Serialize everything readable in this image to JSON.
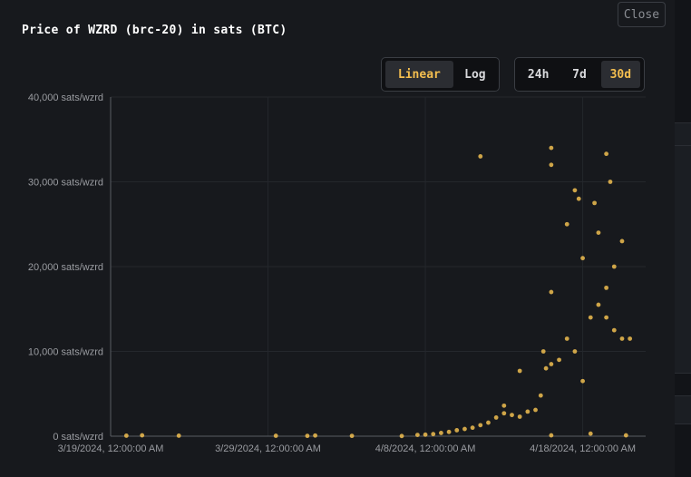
{
  "modal": {
    "title": "Price of WZRD (brc-20) in sats (BTC)",
    "close_label": "Close"
  },
  "scale_toggle": {
    "options": [
      "Linear",
      "Log"
    ],
    "selected": "Linear"
  },
  "range_toggle": {
    "options": [
      "24h",
      "7d",
      "30d"
    ],
    "selected": "30d"
  },
  "colors": {
    "background": "#17191d",
    "accent": "#f4be4f",
    "point": "#f0be50",
    "axis_text": "#9a9ca1"
  },
  "chart_data": {
    "type": "scatter",
    "title": "Price of WZRD (brc-20) in sats (BTC)",
    "xlabel": "",
    "ylabel": "",
    "y_unit": "sats/wzrd",
    "ylim": [
      0,
      40000
    ],
    "y_ticks": [
      0,
      10000,
      20000,
      30000,
      40000
    ],
    "y_tick_labels": [
      "0 sats/wzrd",
      "10,000 sats/wzrd",
      "20,000 sats/wzrd",
      "30,000 sats/wzrd",
      "40,000 sats/wzrd"
    ],
    "xlim": [
      "2024-03-19",
      "2024-04-22"
    ],
    "x_ticks": [
      "2024-03-19",
      "2024-03-29",
      "2024-04-08",
      "2024-04-18"
    ],
    "x_tick_labels": [
      "3/19/2024, 12:00:00 AM",
      "3/29/2024, 12:00:00 AM",
      "4/8/2024, 12:00:00 AM",
      "4/18/2024, 12:00:00 AM"
    ],
    "grid": true,
    "legend": "none",
    "series": [
      {
        "points": [
          [
            "2024-03-20 00:00",
            60
          ],
          [
            "2024-03-21 00:00",
            100
          ],
          [
            "2024-03-23 08:00",
            60
          ],
          [
            "2024-03-29 12:00",
            50
          ],
          [
            "2024-03-31 12:00",
            40
          ],
          [
            "2024-04-01 00:00",
            80
          ],
          [
            "2024-04-03 08:00",
            40
          ],
          [
            "2024-04-06 12:00",
            20
          ],
          [
            "2024-04-07 12:00",
            150
          ],
          [
            "2024-04-08 00:00",
            180
          ],
          [
            "2024-04-08 12:00",
            250
          ],
          [
            "2024-04-09 00:00",
            380
          ],
          [
            "2024-04-09 12:00",
            500
          ],
          [
            "2024-04-10 00:00",
            700
          ],
          [
            "2024-04-10 12:00",
            850
          ],
          [
            "2024-04-11 00:00",
            1000
          ],
          [
            "2024-04-11 12:00",
            1300
          ],
          [
            "2024-04-12 00:00",
            1600
          ],
          [
            "2024-04-12 12:00",
            2200
          ],
          [
            "2024-04-13 00:00",
            2700
          ],
          [
            "2024-04-13 12:00",
            2500
          ],
          [
            "2024-04-14 00:00",
            2300
          ],
          [
            "2024-04-14 12:00",
            2900
          ],
          [
            "2024-04-15 00:00",
            3100
          ],
          [
            "2024-04-15 08:00",
            4800
          ],
          [
            "2024-04-15 16:00",
            8000
          ],
          [
            "2024-04-16 00:00",
            8500
          ],
          [
            "2024-04-16 12:00",
            9000
          ],
          [
            "2024-04-17 00:00",
            11500
          ],
          [
            "2024-04-17 12:00",
            10000
          ],
          [
            "2024-04-18 00:00",
            6500
          ],
          [
            "2024-04-18 12:00",
            14000
          ],
          [
            "2024-04-19 00:00",
            15500
          ],
          [
            "2024-04-19 12:00",
            14000
          ],
          [
            "2024-04-20 00:00",
            12500
          ],
          [
            "2024-04-20 12:00",
            11500
          ],
          [
            "2024-04-21 00:00",
            11500
          ],
          [
            "2024-04-11 12:00",
            33000
          ],
          [
            "2024-04-16 00:00",
            34000
          ],
          [
            "2024-04-16 00:00",
            32000
          ],
          [
            "2024-04-17 00:00",
            25000
          ],
          [
            "2024-04-17 12:00",
            29000
          ],
          [
            "2024-04-17 18:00",
            28000
          ],
          [
            "2024-04-18 18:00",
            27500
          ],
          [
            "2024-04-19 00:00",
            24000
          ],
          [
            "2024-04-19 12:00",
            33300
          ],
          [
            "2024-04-19 18:00",
            30000
          ],
          [
            "2024-04-18 00:00",
            21000
          ],
          [
            "2024-04-20 12:00",
            23000
          ],
          [
            "2024-04-16 00:00",
            17000
          ],
          [
            "2024-04-19 12:00",
            17500
          ],
          [
            "2024-04-20 00:00",
            20000
          ],
          [
            "2024-04-14 00:00",
            7700
          ],
          [
            "2024-04-15 12:00",
            10000
          ],
          [
            "2024-04-18 12:00",
            300
          ],
          [
            "2024-04-20 18:00",
            100
          ],
          [
            "2024-04-16 00:00",
            100
          ],
          [
            "2024-04-13 00:00",
            3600
          ]
        ]
      }
    ]
  }
}
